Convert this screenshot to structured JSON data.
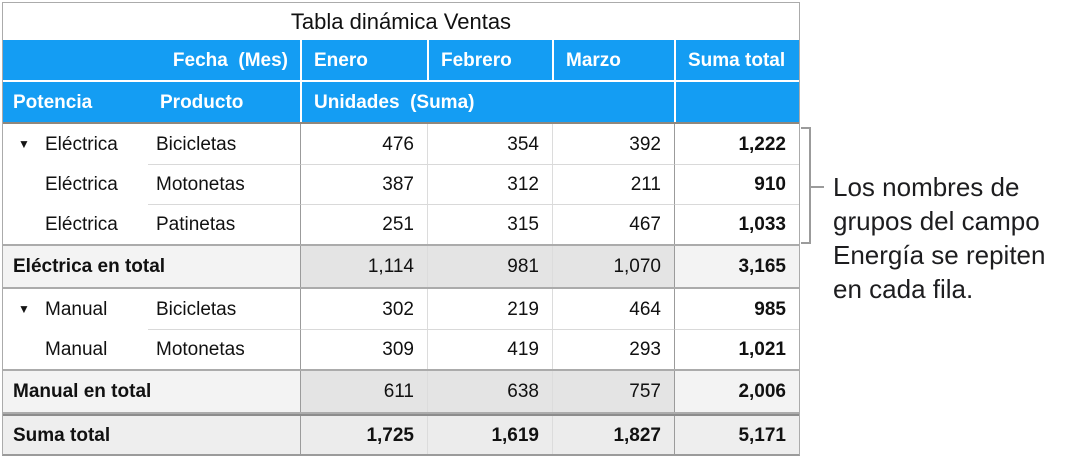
{
  "colors": {
    "header_blue": "#149df3",
    "subtotal_data_bg": "#e4e4e4",
    "subtotal_label_bg": "#f3f3f3",
    "grandtotal_bg": "#ececec",
    "strong_border": "#9b9b9b",
    "light_border": "#d9d9d9",
    "header_underline": "#8f877d"
  },
  "table": {
    "title": "Tabla dinámica Ventas",
    "header": {
      "fecha_label": "Fecha  (Mes)",
      "months": [
        "Enero",
        "Febrero",
        "Marzo"
      ],
      "suma_total_label": "Suma total",
      "potencia_label": "Potencia",
      "producto_label": "Producto",
      "unidades_label": "Unidades  (Suma)"
    },
    "rows": [
      {
        "type": "data",
        "disclosure": true,
        "sep": false,
        "potencia": "Eléctrica",
        "producto": "Bicicletas",
        "values": [
          "476",
          "354",
          "392"
        ],
        "total": "1,222"
      },
      {
        "type": "data",
        "disclosure": false,
        "sep": true,
        "potencia": "Eléctrica",
        "producto": "Motonetas",
        "values": [
          "387",
          "312",
          "211"
        ],
        "total": "910"
      },
      {
        "type": "data",
        "disclosure": false,
        "sep": true,
        "potencia": "Eléctrica",
        "producto": "Patinetas",
        "values": [
          "251",
          "315",
          "467"
        ],
        "total": "1,033"
      },
      {
        "type": "subtotal",
        "label": "Eléctrica en total",
        "values": [
          "1,114",
          "981",
          "1,070"
        ],
        "total": "3,165"
      },
      {
        "type": "data",
        "disclosure": true,
        "sep": false,
        "potencia": "Manual",
        "producto": "Bicicletas",
        "values": [
          "302",
          "219",
          "464"
        ],
        "total": "985"
      },
      {
        "type": "data",
        "disclosure": false,
        "sep": true,
        "potencia": "Manual",
        "producto": "Motonetas",
        "values": [
          "309",
          "419",
          "293"
        ],
        "total": "1,021"
      },
      {
        "type": "subtotal",
        "label": "Manual en total",
        "values": [
          "611",
          "638",
          "757"
        ],
        "total": "2,006"
      },
      {
        "type": "grandtotal",
        "label": "Suma total",
        "values": [
          "1,725",
          "1,619",
          "1,827"
        ],
        "total": "5,171"
      }
    ]
  },
  "icons": {
    "disclosure_triangle": "▼"
  },
  "annotation": {
    "text": "Los nombres de grupos del campo Energía se repiten en cada fila.",
    "lines": [
      "Los nombres de",
      "grupos del campo",
      "Energía se repiten",
      "en cada fila."
    ]
  }
}
